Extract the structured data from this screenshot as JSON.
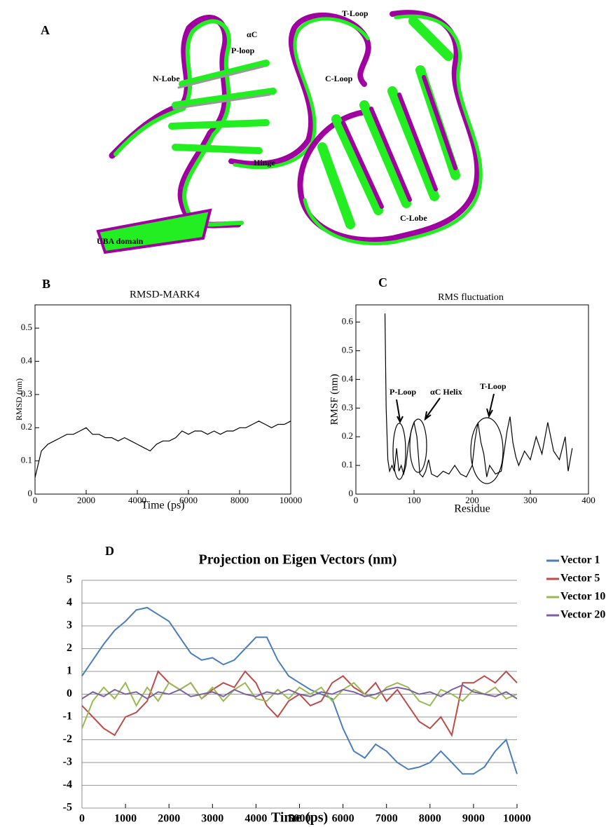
{
  "panel_a": {
    "label": "A",
    "annotations": [
      "αC",
      "P-loop",
      "N-Lobe",
      "Hinge",
      "T-Loop",
      "C-Loop",
      "C-Lobe",
      "UBA domain"
    ]
  },
  "chart_data": [
    {
      "type": "line",
      "panel_label": "B",
      "title": "RMSD-MARK4",
      "x_label": "Time (ps)",
      "y_label": "RMSD (nm)",
      "color": "#000000",
      "x": [
        0,
        250,
        500,
        750,
        1000,
        1250,
        1500,
        1750,
        2000,
        2250,
        2500,
        2750,
        3000,
        3250,
        3500,
        3750,
        4000,
        4250,
        4500,
        4750,
        5000,
        5250,
        5500,
        5750,
        6000,
        6250,
        6500,
        6750,
        7000,
        7250,
        7500,
        7750,
        8000,
        8250,
        8500,
        8750,
        9000,
        9250,
        9500,
        9750,
        10000
      ],
      "values": [
        0.05,
        0.13,
        0.15,
        0.16,
        0.17,
        0.18,
        0.18,
        0.19,
        0.2,
        0.18,
        0.18,
        0.17,
        0.17,
        0.16,
        0.17,
        0.16,
        0.15,
        0.14,
        0.13,
        0.15,
        0.16,
        0.16,
        0.17,
        0.19,
        0.18,
        0.19,
        0.19,
        0.18,
        0.19,
        0.18,
        0.19,
        0.19,
        0.2,
        0.2,
        0.21,
        0.22,
        0.21,
        0.2,
        0.21,
        0.21,
        0.22
      ],
      "xlim": [
        0,
        10000
      ],
      "xticks": [
        0,
        2000,
        4000,
        6000,
        8000,
        10000
      ],
      "ylim": [
        0,
        0.57
      ],
      "yticks": [
        0,
        0.1,
        0.2,
        0.3,
        0.4,
        0.5
      ],
      "grid": false
    },
    {
      "type": "line",
      "panel_label": "C",
      "title": "RMS fluctuation",
      "x_label": "Residue",
      "y_label": "RMSF (nm)",
      "color": "#000000",
      "x": [
        50,
        52,
        55,
        58,
        62,
        66,
        70,
        74,
        78,
        82,
        86,
        90,
        95,
        100,
        105,
        110,
        115,
        120,
        125,
        130,
        140,
        150,
        160,
        170,
        180,
        190,
        200,
        205,
        210,
        215,
        220,
        225,
        230,
        240,
        250,
        260,
        265,
        270,
        275,
        280,
        290,
        300,
        310,
        320,
        330,
        340,
        350,
        360,
        365,
        372
      ],
      "values": [
        0.63,
        0.3,
        0.12,
        0.08,
        0.1,
        0.08,
        0.16,
        0.08,
        0.1,
        0.07,
        0.1,
        0.17,
        0.22,
        0.25,
        0.2,
        0.07,
        0.06,
        0.08,
        0.12,
        0.07,
        0.06,
        0.08,
        0.07,
        0.1,
        0.07,
        0.06,
        0.1,
        0.19,
        0.25,
        0.18,
        0.14,
        0.06,
        0.1,
        0.07,
        0.08,
        0.22,
        0.27,
        0.18,
        0.13,
        0.1,
        0.15,
        0.12,
        0.2,
        0.14,
        0.25,
        0.15,
        0.12,
        0.2,
        0.08,
        0.16
      ],
      "annotations": [
        "P-Loop",
        "αC Helix",
        "T-Loop"
      ],
      "xlim": [
        0,
        400
      ],
      "xticks": [
        0,
        100,
        200,
        300,
        400
      ],
      "ylim": [
        0,
        0.66
      ],
      "yticks": [
        0,
        0.1,
        0.2,
        0.3,
        0.4,
        0.5,
        0.6
      ],
      "grid": false
    },
    {
      "type": "line",
      "panel_label": "D",
      "title": "Projection on Eigen Vectors  (nm)",
      "x_label": "Time (ps)",
      "legend": "right",
      "x": [
        0,
        250,
        500,
        750,
        1000,
        1250,
        1500,
        1750,
        2000,
        2250,
        2500,
        2750,
        3000,
        3250,
        3500,
        3750,
        4000,
        4250,
        4500,
        4750,
        5000,
        5250,
        5500,
        5750,
        6000,
        6250,
        6500,
        6750,
        7000,
        7250,
        7500,
        7750,
        8000,
        8250,
        8500,
        8750,
        9000,
        9250,
        9500,
        9750,
        10000
      ],
      "series": [
        {
          "name": "Vector 1",
          "color": "#4a7ebb",
          "values": [
            0.8,
            1.5,
            2.2,
            2.8,
            3.2,
            3.7,
            3.8,
            3.5,
            3.2,
            2.5,
            1.8,
            1.5,
            1.6,
            1.3,
            1.5,
            2.0,
            2.5,
            2.5,
            1.5,
            0.8,
            0.5,
            0.2,
            0,
            -0.2,
            -1.5,
            -2.5,
            -2.8,
            -2.2,
            -2.5,
            -3.0,
            -3.3,
            -3.2,
            -3.0,
            -2.5,
            -3.0,
            -3.5,
            -3.5,
            -3.2,
            -2.5,
            -2.0,
            -3.5
          ]
        },
        {
          "name": "Vector 5",
          "color": "#be4b48",
          "values": [
            -0.5,
            -1.0,
            -1.5,
            -1.8,
            -1.0,
            -0.8,
            -0.3,
            1.0,
            0.5,
            0.2,
            0.5,
            -0.2,
            0.2,
            0.5,
            0.3,
            1.0,
            0.5,
            -0.5,
            -1.0,
            -0.3,
            0,
            -0.5,
            -0.3,
            0.5,
            0.8,
            0.3,
            0,
            0.5,
            -0.3,
            0.2,
            -0.5,
            -1.2,
            -1.5,
            -1.0,
            -1.8,
            0.5,
            0.5,
            0.8,
            0.5,
            1.0,
            0.5
          ]
        },
        {
          "name": "Vector 10",
          "color": "#98b954",
          "values": [
            -1.5,
            -0.3,
            0.3,
            -0.2,
            0.5,
            -0.5,
            0.3,
            -0.3,
            0.5,
            0.2,
            0.5,
            -0.2,
            0.3,
            -0.3,
            0.2,
            0.5,
            -0.2,
            -0.3,
            0.2,
            -0.2,
            0.3,
            0,
            0.3,
            -0.3,
            0.2,
            0.5,
            0,
            -0.2,
            0.3,
            0.5,
            0.3,
            -0.3,
            -0.5,
            0.2,
            0,
            -0.3,
            0.2,
            0,
            0.3,
            -0.2,
            0
          ]
        },
        {
          "name": "Vector 20",
          "color": "#7d60a0",
          "values": [
            -0.2,
            0.1,
            -0.1,
            0.2,
            0,
            0.1,
            -0.2,
            0.1,
            0,
            0.2,
            -0.1,
            0,
            0.1,
            -0.1,
            0.2,
            0,
            -0.1,
            0.1,
            0,
            0.2,
            0,
            -0.1,
            0.1,
            0,
            0.2,
            0.1,
            -0.1,
            0,
            0.2,
            0.3,
            0.2,
            0,
            0.1,
            -0.1,
            0.2,
            0.4,
            0.1,
            0,
            -0.1,
            0.1,
            -0.2
          ]
        }
      ],
      "xlim": [
        0,
        10000
      ],
      "xticks": [
        0,
        1000,
        2000,
        3000,
        4000,
        5000,
        6000,
        7000,
        8000,
        9000,
        10000
      ],
      "ylim": [
        -5,
        5
      ],
      "yticks": [
        -5,
        -4,
        -3,
        -2,
        -1,
        0,
        1,
        2,
        3,
        4,
        5
      ],
      "grid": true
    }
  ]
}
